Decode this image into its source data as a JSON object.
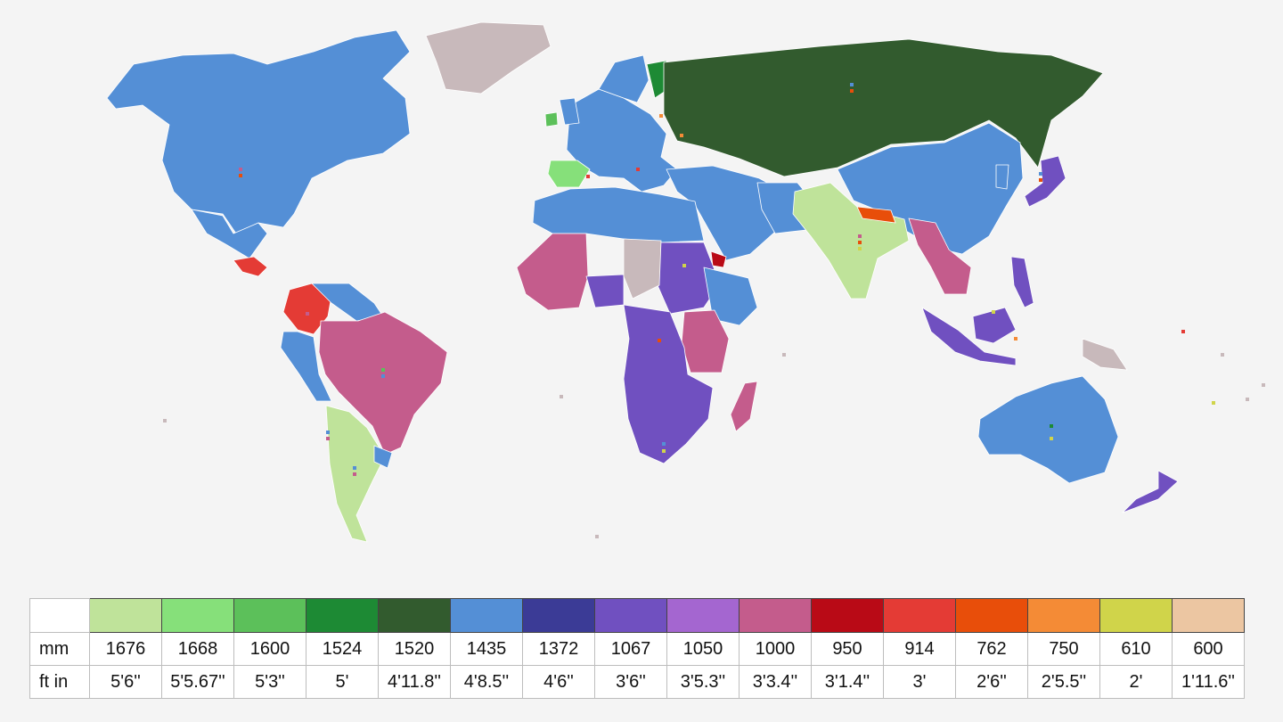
{
  "legend": {
    "row_labels": {
      "mm": "mm",
      "ftin": "ft in"
    },
    "gauges": [
      {
        "mm": "1676",
        "ftin": "5'6''",
        "color": "#bfe39a"
      },
      {
        "mm": "1668",
        "ftin": "5'5.67''",
        "color": "#86e07a"
      },
      {
        "mm": "1600",
        "ftin": "5'3''",
        "color": "#5cc05a"
      },
      {
        "mm": "1524",
        "ftin": "5'",
        "color": "#1d8a34"
      },
      {
        "mm": "1520",
        "ftin": "4'11.8''",
        "color": "#325b2e"
      },
      {
        "mm": "1435",
        "ftin": "4'8.5''",
        "color": "#548fd6"
      },
      {
        "mm": "1372",
        "ftin": "4'6''",
        "color": "#3b3b96"
      },
      {
        "mm": "1067",
        "ftin": "3'6''",
        "color": "#7050c0"
      },
      {
        "mm": "1050",
        "ftin": "3'5.3''",
        "color": "#a466d0"
      },
      {
        "mm": "1000",
        "ftin": "3'3.4''",
        "color": "#c45c8c"
      },
      {
        "mm": "950",
        "ftin": "3'1.4''",
        "color": "#b90a16"
      },
      {
        "mm": "914",
        "ftin": "3'",
        "color": "#e43b35"
      },
      {
        "mm": "762",
        "ftin": "2'6''",
        "color": "#e84e0a"
      },
      {
        "mm": "750",
        "ftin": "2'5.5''",
        "color": "#f48b36"
      },
      {
        "mm": "610",
        "ftin": "2'",
        "color": "#d0d44a"
      },
      {
        "mm": "600",
        "ftin": "1'11.6''",
        "color": "#ecc6a2"
      }
    ]
  },
  "map": {
    "colors": {
      "standard_1435": "#548fd6",
      "russian_1520": "#325b2e",
      "finnish_1524": "#1d8a34",
      "iberian_1668": "#86e07a",
      "irish_1600": "#5cc05a",
      "indian_1676": "#bfe39a",
      "cape_1067": "#7050c0",
      "metre_1000": "#c45c8c",
      "italian_950": "#b90a16",
      "narrow_914": "#e43b35",
      "no_rail": "#c8b9bb",
      "nepal_762": "#e84e0a"
    }
  }
}
